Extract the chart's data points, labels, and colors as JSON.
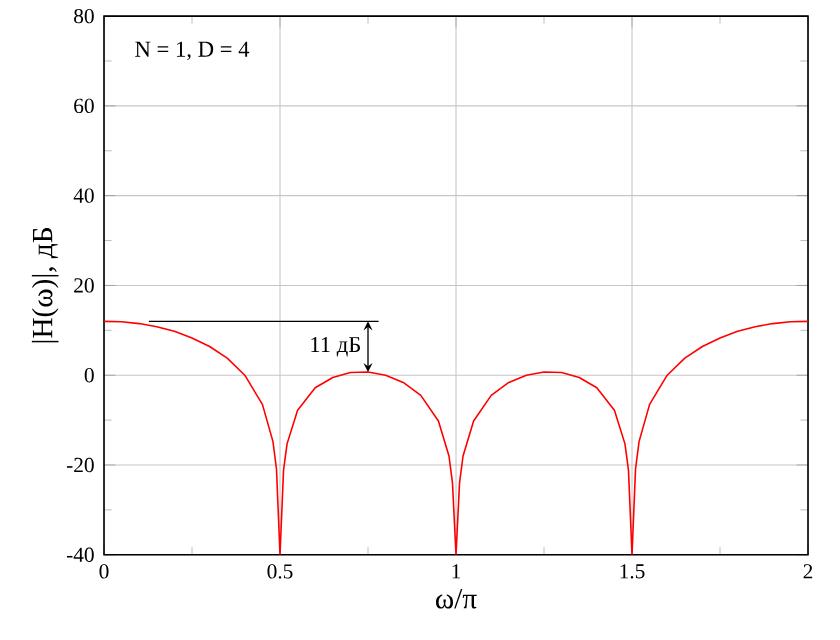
{
  "chart_data": {
    "type": "line",
    "xlabel": "ω/π",
    "ylabel": "|H(ω)|, дБ",
    "x": [
      0,
      0.05,
      0.1,
      0.15,
      0.2,
      0.25,
      0.3,
      0.35,
      0.4,
      0.45,
      0.48,
      0.49,
      0.5,
      0.51,
      0.52,
      0.55,
      0.6,
      0.65,
      0.7,
      0.75,
      0.8,
      0.85,
      0.9,
      0.95,
      0.98,
      0.99,
      1.0,
      1.01,
      1.02,
      1.05,
      1.1,
      1.15,
      1.2,
      1.25,
      1.3,
      1.35,
      1.4,
      1.45,
      1.48,
      1.49,
      1.5,
      1.51,
      1.52,
      1.55,
      1.6,
      1.65,
      1.7,
      1.75,
      1.8,
      1.85,
      1.9,
      1.95,
      2.0
    ],
    "values": [
      12.0,
      11.9,
      11.5,
      10.8,
      9.8,
      8.3,
      6.4,
      3.8,
      0,
      -6.5,
      -14.8,
      -20.9,
      -40,
      -21.2,
      -15.3,
      -7.8,
      -2.8,
      -0.5,
      0.6,
      0.7,
      0,
      -1.6,
      -4.5,
      -10.2,
      -18.0,
      -24.0,
      -40,
      -24.0,
      -18.0,
      -10.2,
      -4.5,
      -1.6,
      0,
      0.7,
      0.6,
      -0.5,
      -2.8,
      -7.8,
      -15.3,
      -21.2,
      -40,
      -20.9,
      -14.8,
      -6.5,
      0,
      3.8,
      6.4,
      8.3,
      9.8,
      10.8,
      11.5,
      11.9,
      12.0
    ],
    "color": "#ff0000",
    "xlim": [
      0,
      2
    ],
    "ylim": [
      -40,
      80
    ],
    "xticks": [
      0,
      0.5,
      1,
      1.5,
      2
    ],
    "yticks": [
      -40,
      -20,
      0,
      20,
      40,
      60,
      80
    ],
    "grid": true,
    "annotations": [
      "N = 1, D = 4",
      {
        "text": "11 дБ",
        "x": 0.75,
        "y": 0.7
      }
    ]
  }
}
